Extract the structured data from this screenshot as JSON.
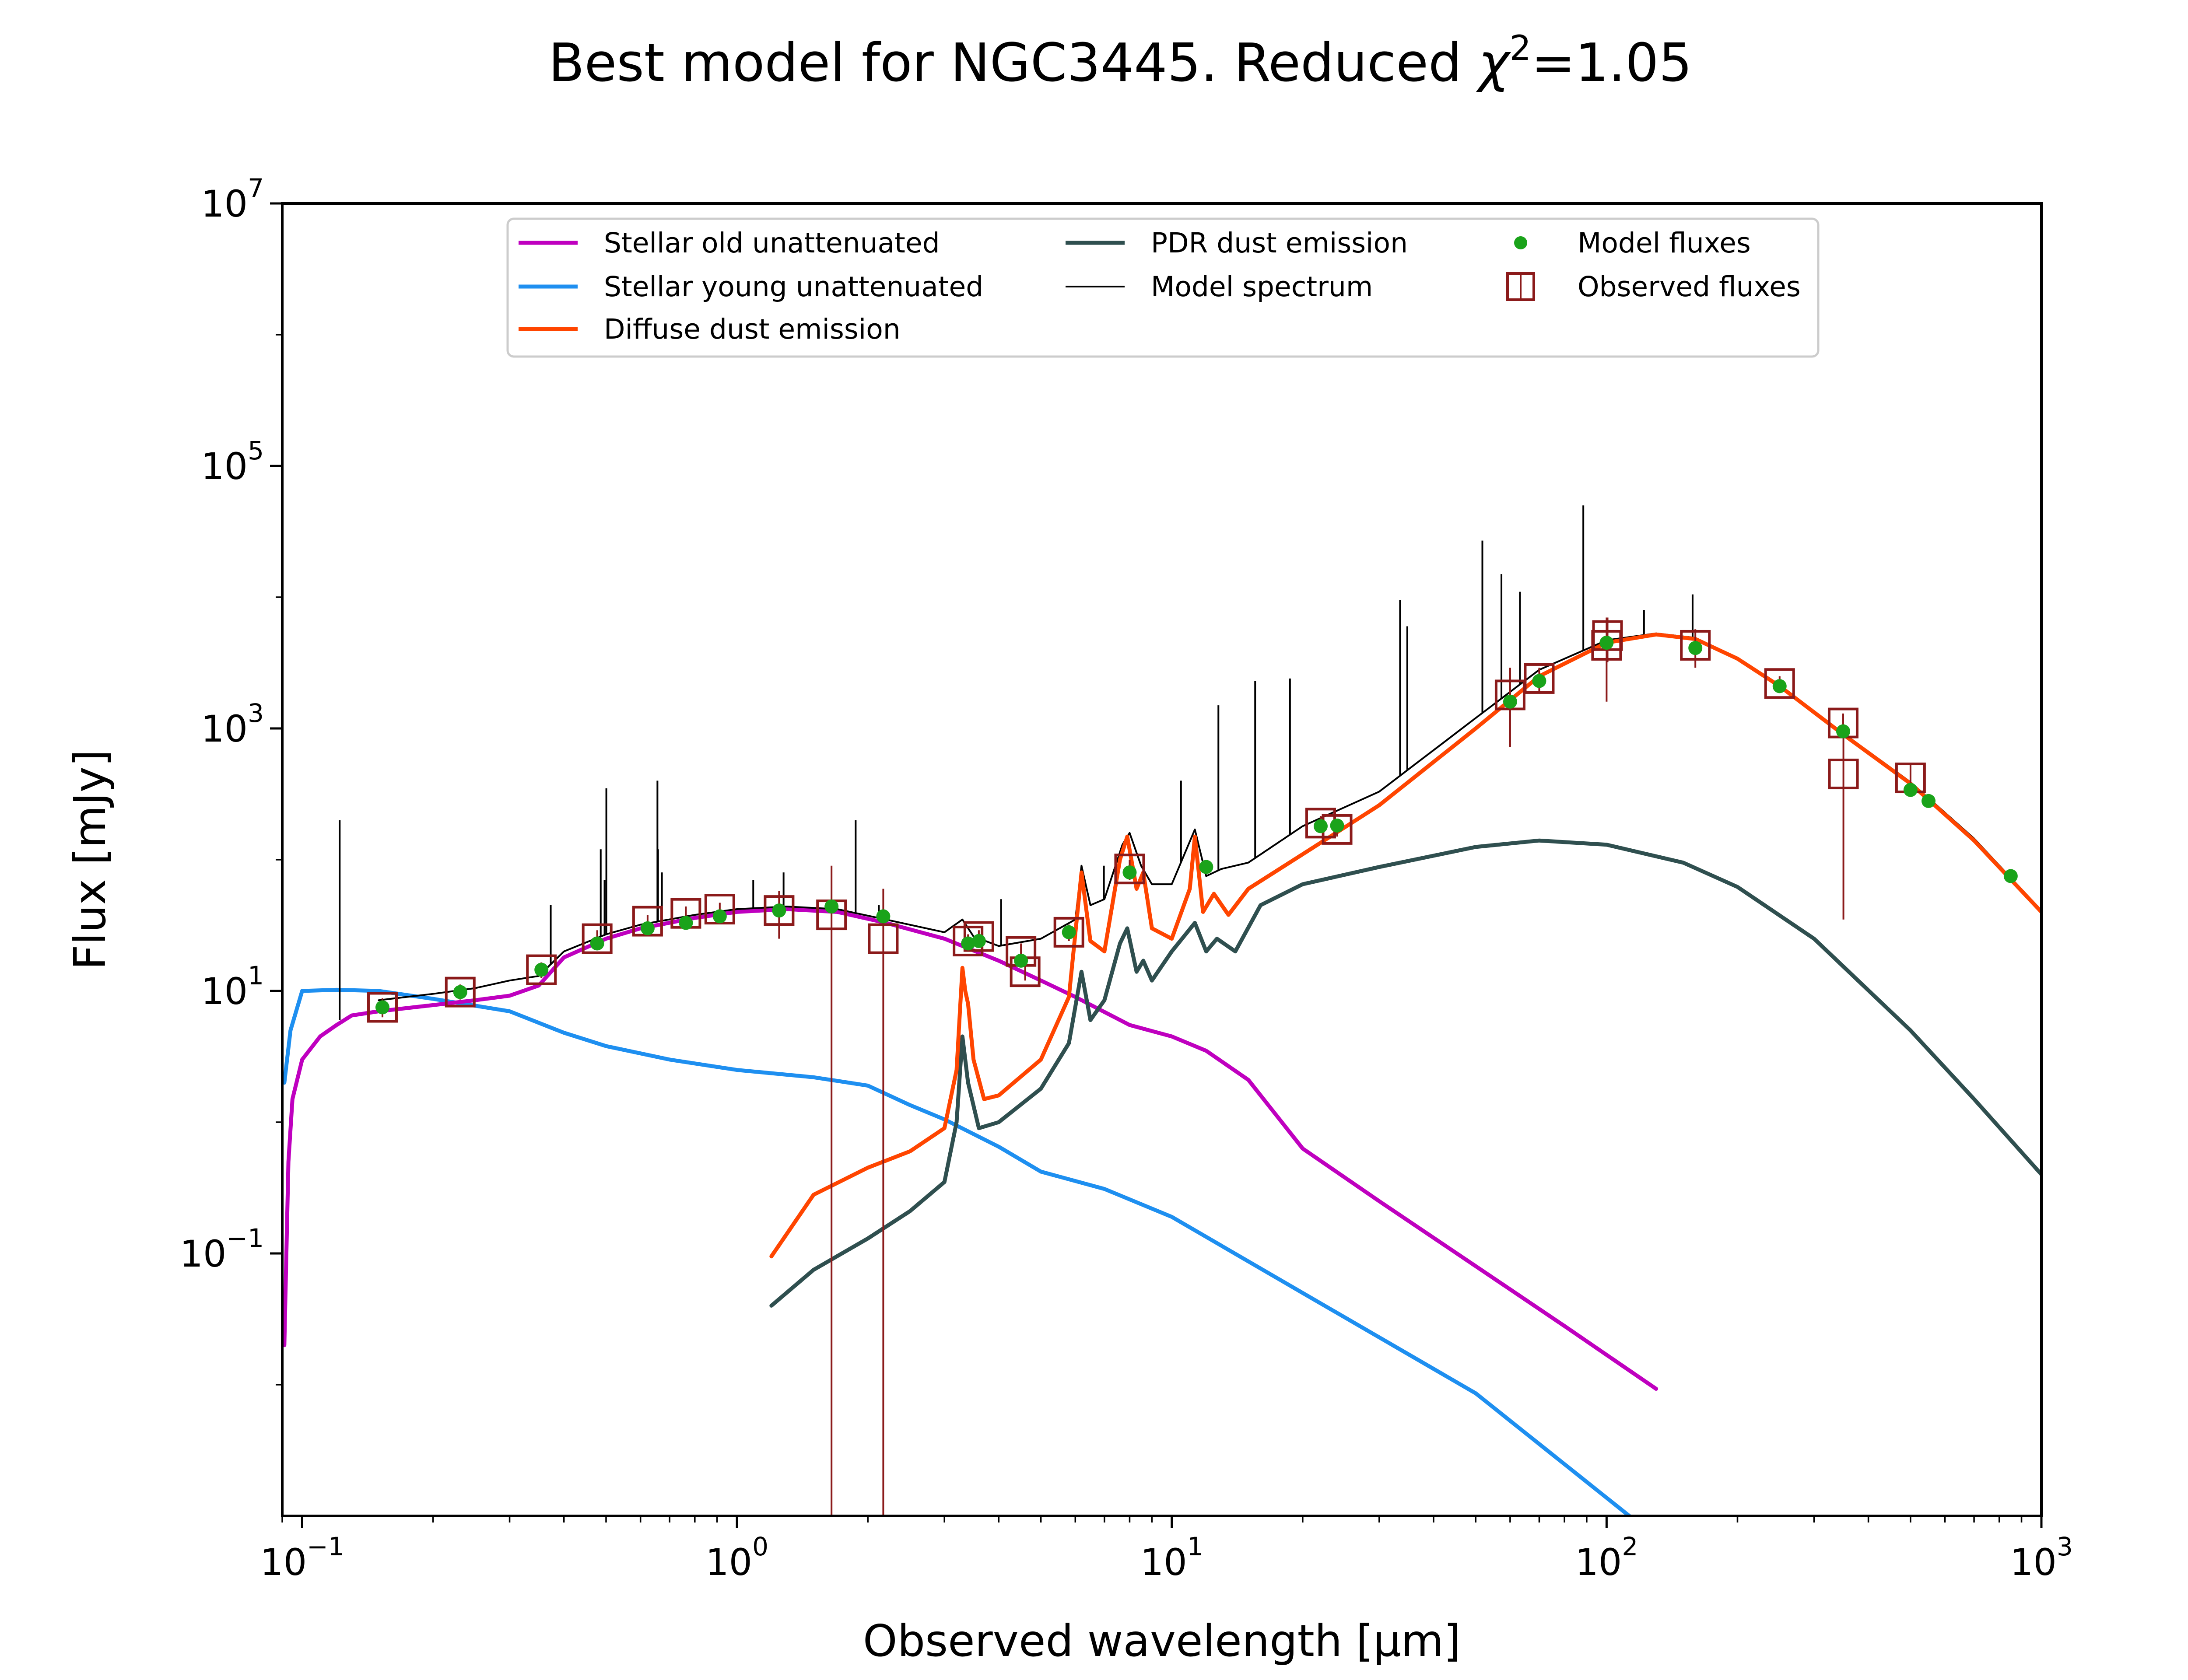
{
  "chart_data": {
    "type": "line",
    "title": "Best model for NGC3445. Reduced χ²=1.05",
    "title_main": "Best model for NGC3445. Reduced ",
    "title_chi": "χ",
    "title_sup": "2",
    "title_tail": "=1.05",
    "xlabel": "Observed wavelength [μm]",
    "ylabel": "Flux [mJy]",
    "xscale": "log",
    "yscale": "log",
    "xlim": [
      0.09,
      1000
    ],
    "ylim": [
      0.001,
      10000000
    ],
    "x_ticks": [
      {
        "value": 0.1,
        "base": "10",
        "exp": "−1"
      },
      {
        "value": 1,
        "base": "10",
        "exp": "0"
      },
      {
        "value": 10,
        "base": "10",
        "exp": "1"
      },
      {
        "value": 100,
        "base": "10",
        "exp": "2"
      },
      {
        "value": 1000,
        "base": "10",
        "exp": "3"
      }
    ],
    "y_ticks": [
      {
        "value": 0.1,
        "base": "10",
        "exp": "−1"
      },
      {
        "value": 10,
        "base": "10",
        "exp": "1"
      },
      {
        "value": 1000,
        "base": "10",
        "exp": "3"
      },
      {
        "value": 100000,
        "base": "10",
        "exp": "5"
      },
      {
        "value": 10000000,
        "base": "10",
        "exp": "7"
      }
    ],
    "grid": false,
    "legend_position": "top-center",
    "series": [
      {
        "name": "Stellar old unattenuated",
        "color": "#bf00bf",
        "kind": "line",
        "points": [
          [
            0.091,
            0.02
          ],
          [
            0.093,
            0.5
          ],
          [
            0.095,
            1.5
          ],
          [
            0.1,
            3.0
          ],
          [
            0.11,
            4.5
          ],
          [
            0.12,
            5.5
          ],
          [
            0.13,
            6.5
          ],
          [
            0.15,
            7.0
          ],
          [
            0.2,
            7.8
          ],
          [
            0.25,
            8.5
          ],
          [
            0.3,
            9.2
          ],
          [
            0.35,
            11
          ],
          [
            0.4,
            18
          ],
          [
            0.5,
            25
          ],
          [
            0.6,
            30
          ],
          [
            0.8,
            36
          ],
          [
            1.0,
            40
          ],
          [
            1.3,
            42
          ],
          [
            1.7,
            40
          ],
          [
            2.2,
            33
          ],
          [
            3.0,
            25
          ],
          [
            4.0,
            17
          ],
          [
            5.0,
            12
          ],
          [
            6.0,
            9
          ],
          [
            8.0,
            5.5
          ],
          [
            10.0,
            4.5
          ],
          [
            12.0,
            3.5
          ],
          [
            15.0,
            2.1
          ],
          [
            20.0,
            0.63
          ],
          [
            30.0,
            0.25
          ],
          [
            50.0,
            0.08
          ],
          [
            80.0,
            0.028
          ],
          [
            130.0,
            0.0093
          ]
        ]
      },
      {
        "name": "Stellar young unattenuated",
        "color": "#1e8ff0",
        "kind": "line",
        "points": [
          [
            0.091,
            2.0
          ],
          [
            0.094,
            5.0
          ],
          [
            0.1,
            10.0
          ],
          [
            0.12,
            10.2
          ],
          [
            0.15,
            10.0
          ],
          [
            0.2,
            8.7
          ],
          [
            0.3,
            7.0
          ],
          [
            0.4,
            4.8
          ],
          [
            0.5,
            3.8
          ],
          [
            0.7,
            3.0
          ],
          [
            1.0,
            2.5
          ],
          [
            1.5,
            2.2
          ],
          [
            2.0,
            1.9
          ],
          [
            2.5,
            1.35
          ],
          [
            3.0,
            1.05
          ],
          [
            4.0,
            0.65
          ],
          [
            5.0,
            0.42
          ],
          [
            7.0,
            0.31
          ],
          [
            10.0,
            0.19
          ],
          [
            20.0,
            0.05
          ],
          [
            50.0,
            0.0086
          ],
          [
            115.0,
            0.00095
          ]
        ]
      },
      {
        "name": "Diffuse dust emission",
        "color": "#ff4500",
        "kind": "line",
        "points": [
          [
            1.2,
            0.095
          ],
          [
            1.5,
            0.28
          ],
          [
            2.0,
            0.45
          ],
          [
            2.5,
            0.6
          ],
          [
            3.0,
            0.9
          ],
          [
            3.2,
            2.5
          ],
          [
            3.3,
            15
          ],
          [
            3.35,
            10
          ],
          [
            3.4,
            8.0
          ],
          [
            3.5,
            3.0
          ],
          [
            3.7,
            1.5
          ],
          [
            4.0,
            1.6
          ],
          [
            5.0,
            3.0
          ],
          [
            5.8,
            9.0
          ],
          [
            6.2,
            80
          ],
          [
            6.5,
            24
          ],
          [
            7.0,
            20
          ],
          [
            7.6,
            100
          ],
          [
            7.9,
            150
          ],
          [
            8.3,
            60
          ],
          [
            8.6,
            80
          ],
          [
            9.0,
            30
          ],
          [
            10.0,
            25
          ],
          [
            11.0,
            60
          ],
          [
            11.3,
            150
          ],
          [
            11.8,
            40
          ],
          [
            12.5,
            55
          ],
          [
            13.5,
            38
          ],
          [
            15.0,
            60
          ],
          [
            20.0,
            110
          ],
          [
            30.0,
            260
          ],
          [
            50.0,
            1000
          ],
          [
            70.0,
            2500
          ],
          [
            100.0,
            4500
          ],
          [
            130.0,
            5200
          ],
          [
            160.0,
            4800
          ],
          [
            200.0,
            3400
          ],
          [
            250.0,
            2100
          ],
          [
            350.0,
            900
          ],
          [
            500.0,
            380
          ],
          [
            700.0,
            140
          ],
          [
            1000.0,
            40
          ]
        ]
      },
      {
        "name": "PDR dust emission",
        "color": "#2f4f4f",
        "kind": "line",
        "points": [
          [
            1.2,
            0.04
          ],
          [
            1.5,
            0.075
          ],
          [
            2.0,
            0.13
          ],
          [
            2.5,
            0.21
          ],
          [
            3.0,
            0.35
          ],
          [
            3.2,
            1.0
          ],
          [
            3.3,
            4.5
          ],
          [
            3.4,
            2.0
          ],
          [
            3.6,
            0.9
          ],
          [
            4.0,
            1.0
          ],
          [
            5.0,
            1.8
          ],
          [
            5.8,
            4.0
          ],
          [
            6.2,
            14
          ],
          [
            6.5,
            6.0
          ],
          [
            7.0,
            8.5
          ],
          [
            7.6,
            23
          ],
          [
            7.9,
            30
          ],
          [
            8.3,
            14
          ],
          [
            8.6,
            17
          ],
          [
            9.0,
            12
          ],
          [
            10.0,
            20
          ],
          [
            11.3,
            33
          ],
          [
            12.0,
            20
          ],
          [
            12.7,
            25
          ],
          [
            14.0,
            20
          ],
          [
            16.0,
            45
          ],
          [
            20.0,
            65
          ],
          [
            30.0,
            88
          ],
          [
            50.0,
            125
          ],
          [
            70.0,
            140
          ],
          [
            100.0,
            130
          ],
          [
            150.0,
            95
          ],
          [
            200.0,
            62
          ],
          [
            300.0,
            25
          ],
          [
            500.0,
            5.0
          ],
          [
            700.0,
            1.5
          ],
          [
            1000.0,
            0.4
          ]
        ]
      },
      {
        "name": "Model spectrum",
        "color": "#000000",
        "kind": "line",
        "points": [
          [
            0.15,
            8.5
          ],
          [
            0.2,
            9.5
          ],
          [
            0.25,
            10.5
          ],
          [
            0.3,
            12.0
          ],
          [
            0.35,
            13.0
          ],
          [
            0.4,
            20.0
          ],
          [
            0.5,
            27.0
          ],
          [
            0.6,
            32.0
          ],
          [
            0.8,
            38.0
          ],
          [
            1.0,
            42.0
          ],
          [
            1.3,
            44.0
          ],
          [
            1.7,
            42.0
          ],
          [
            2.2,
            35.0
          ],
          [
            3.0,
            28.0
          ],
          [
            3.3,
            35.0
          ],
          [
            3.5,
            26.0
          ],
          [
            4.0,
            22.0
          ],
          [
            5.0,
            25.0
          ],
          [
            6.0,
            35.0
          ],
          [
            6.2,
            90.0
          ],
          [
            6.5,
            45.0
          ],
          [
            7.0,
            50.0
          ],
          [
            7.7,
            130.0
          ],
          [
            8.0,
            160.0
          ],
          [
            8.5,
            90.0
          ],
          [
            9.0,
            65.0
          ],
          [
            10.0,
            65.0
          ],
          [
            11.3,
            170.0
          ],
          [
            12.0,
            75.0
          ],
          [
            13.0,
            85.0
          ],
          [
            15.0,
            95.0
          ],
          [
            20.0,
            180.0
          ],
          [
            30.0,
            330.0
          ],
          [
            50.0,
            1200.0
          ],
          [
            70.0,
            2800.0
          ],
          [
            100.0,
            4700.0
          ],
          [
            130.0,
            5300.0
          ],
          [
            160.0,
            4900.0
          ],
          [
            200.0,
            3450.0
          ],
          [
            250.0,
            2150.0
          ],
          [
            350.0,
            920.0
          ],
          [
            500.0,
            390.0
          ],
          [
            700.0,
            145.0
          ],
          [
            1000.0,
            41.0
          ]
        ],
        "emission_lines": [
          [
            0.122,
            200
          ],
          [
            0.373,
            45
          ],
          [
            0.486,
            120
          ],
          [
            0.496,
            70
          ],
          [
            0.5007,
            350
          ],
          [
            0.6563,
            400
          ],
          [
            0.6583,
            120
          ],
          [
            0.672,
            80
          ],
          [
            1.09,
            70
          ],
          [
            1.28,
            80
          ],
          [
            1.875,
            200
          ],
          [
            2.12,
            45
          ],
          [
            4.05,
            50
          ],
          [
            6.98,
            90
          ],
          [
            10.5,
            400
          ],
          [
            12.8,
            1500
          ],
          [
            15.55,
            2300
          ],
          [
            18.7,
            2400
          ],
          [
            33.5,
            9500
          ],
          [
            34.8,
            6000
          ],
          [
            51.8,
            27000
          ],
          [
            57.3,
            15000
          ],
          [
            63.2,
            11000
          ],
          [
            88.4,
            50000
          ],
          [
            121.9,
            8000
          ],
          [
            157.7,
            10500
          ]
        ]
      }
    ],
    "model_fluxes": {
      "name": "Model fluxes",
      "color": "#1aa31a",
      "points": [
        [
          0.153,
          7.5
        ],
        [
          0.231,
          9.8
        ],
        [
          0.355,
          14.5
        ],
        [
          0.477,
          23
        ],
        [
          0.623,
          30
        ],
        [
          0.763,
          33
        ],
        [
          0.913,
          37
        ],
        [
          1.25,
          41
        ],
        [
          1.65,
          44
        ],
        [
          2.17,
          37
        ],
        [
          3.4,
          23
        ],
        [
          3.6,
          24
        ],
        [
          4.5,
          17
        ],
        [
          5.8,
          28
        ],
        [
          8.0,
          80
        ],
        [
          12.0,
          88
        ],
        [
          22.0,
          180
        ],
        [
          24.0,
          182
        ],
        [
          60.0,
          1600
        ],
        [
          70.0,
          2300
        ],
        [
          100.0,
          4500
        ],
        [
          160.0,
          4100
        ],
        [
          250.0,
          2100
        ],
        [
          350.0,
          950
        ],
        [
          500.0,
          340
        ],
        [
          550.0,
          280
        ],
        [
          850.0,
          75
        ]
      ]
    },
    "observed_fluxes": {
      "name": "Observed fluxes",
      "color": "#8b1a1a",
      "points": [
        {
          "x": 0.153,
          "y": 7.5,
          "lo": 6.3,
          "hi": 8.8
        },
        {
          "x": 0.231,
          "y": 9.8,
          "lo": 8.6,
          "hi": 11.2
        },
        {
          "x": 0.355,
          "y": 14.5,
          "lo": 12.5,
          "hi": 16.5
        },
        {
          "x": 0.477,
          "y": 25,
          "lo": 21,
          "hi": 29
        },
        {
          "x": 0.623,
          "y": 34,
          "lo": 30,
          "hi": 38
        },
        {
          "x": 0.763,
          "y": 39,
          "lo": 34,
          "hi": 44
        },
        {
          "x": 0.913,
          "y": 42,
          "lo": 37,
          "hi": 47
        },
        {
          "x": 1.25,
          "y": 41,
          "lo": 25,
          "hi": 58
        },
        {
          "x": 1.65,
          "y": 38,
          "lo": 0.001,
          "hi": 90
        },
        {
          "x": 2.17,
          "y": 25,
          "lo": 0.001,
          "hi": 60
        },
        {
          "x": 3.4,
          "y": 24,
          "lo": 21,
          "hi": 27
        },
        {
          "x": 3.6,
          "y": 26,
          "lo": 23,
          "hi": 29
        },
        {
          "x": 4.5,
          "y": 20,
          "lo": 17,
          "hi": 23
        },
        {
          "x": 4.6,
          "y": 14,
          "lo": 12,
          "hi": 16
        },
        {
          "x": 5.8,
          "y": 28,
          "lo": 24,
          "hi": 32
        },
        {
          "x": 8.0,
          "y": 85,
          "lo": 70,
          "hi": 100
        },
        {
          "x": 22.0,
          "y": 190,
          "lo": 165,
          "hi": 215
        },
        {
          "x": 24.0,
          "y": 170,
          "lo": 150,
          "hi": 190
        },
        {
          "x": 60.0,
          "y": 1800,
          "lo": 720,
          "hi": 2900
        },
        {
          "x": 70.0,
          "y": 2400,
          "lo": 1900,
          "hi": 2900
        },
        {
          "x": 100.0,
          "y": 4300,
          "lo": 1600,
          "hi": 7000
        },
        {
          "x": 100.5,
          "y": 5100,
          "lo": 3200,
          "hi": 7000
        },
        {
          "x": 160.0,
          "y": 4300,
          "lo": 2900,
          "hi": 5700
        },
        {
          "x": 250.0,
          "y": 2200,
          "lo": 1900,
          "hi": 2500
        },
        {
          "x": 350.0,
          "y": 1100,
          "lo": 900,
          "hi": 1300
        },
        {
          "x": 350.5,
          "y": 450,
          "lo": 35,
          "hi": 870
        },
        {
          "x": 500.0,
          "y": 420,
          "lo": 300,
          "hi": 540
        }
      ]
    },
    "legend": {
      "entries": [
        {
          "label": "Stellar old unattenuated",
          "color": "#bf00bf",
          "kind": "line",
          "col": 0,
          "row": 0
        },
        {
          "label": "Stellar young unattenuated",
          "color": "#1e8ff0",
          "kind": "line",
          "col": 0,
          "row": 1
        },
        {
          "label": "Diffuse dust emission",
          "color": "#ff4500",
          "kind": "line",
          "col": 0,
          "row": 2
        },
        {
          "label": "PDR dust emission",
          "color": "#2f4f4f",
          "kind": "line",
          "col": 1,
          "row": 0
        },
        {
          "label": "Model spectrum",
          "color": "#000000",
          "kind": "thin",
          "col": 1,
          "row": 1
        },
        {
          "label": "Model fluxes",
          "color": "#1aa31a",
          "kind": "dot",
          "col": 2,
          "row": 0
        },
        {
          "label": "Observed fluxes",
          "color": "#8b1a1a",
          "kind": "box",
          "col": 2,
          "row": 1
        }
      ]
    }
  }
}
